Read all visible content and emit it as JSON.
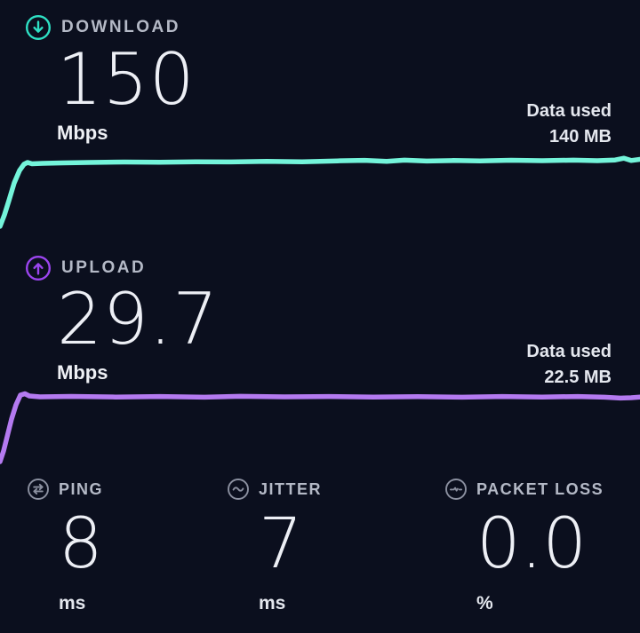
{
  "theme": {
    "background": "#0b0f1e",
    "download_accent": "#2ee0c4",
    "download_line_color": "#74f4da",
    "upload_accent": "#9b45ef",
    "upload_line_color": "#b47af0",
    "label_color": "#b4b9c6",
    "value_color": "#edeff5",
    "stat_icon_color": "#8b90a0"
  },
  "download": {
    "label": "DOWNLOAD",
    "value": "150",
    "unit": "Mbps",
    "data_used_label": "Data used",
    "data_used_value": "140 MB",
    "icon": "download-arrow-circle-icon"
  },
  "upload": {
    "label": "UPLOAD",
    "value": "29.7",
    "unit": "Mbps",
    "data_used_label": "Data used",
    "data_used_value": "22.5 MB",
    "icon": "upload-arrow-circle-icon"
  },
  "stats": [
    {
      "id": "ping",
      "label": "PING",
      "value": "8",
      "unit": "ms",
      "icon": "ping-exchange-icon"
    },
    {
      "id": "jitter",
      "label": "JITTER",
      "value": "7",
      "unit": "ms",
      "icon": "jitter-wave-icon"
    },
    {
      "id": "packet_loss",
      "label": "PACKET LOSS",
      "value": "0.0",
      "unit": "%",
      "icon": "packet-loss-pulse-icon"
    }
  ],
  "chart_data": [
    {
      "type": "line",
      "name": "download-speed-sparkline",
      "title": "Download speed over test duration (ramps up then steady at ~150 Mbps)",
      "color": "#74f4da",
      "stroke_width": 5.5,
      "axes": "none",
      "points": [
        [
          0,
          87
        ],
        [
          5,
          74
        ],
        [
          10,
          58
        ],
        [
          16,
          38
        ],
        [
          22,
          24
        ],
        [
          27,
          17
        ],
        [
          31,
          15
        ],
        [
          36,
          16.5
        ],
        [
          48,
          16
        ],
        [
          70,
          15.5
        ],
        [
          100,
          15
        ],
        [
          140,
          14.5
        ],
        [
          180,
          14.8
        ],
        [
          220,
          14.2
        ],
        [
          260,
          14.4
        ],
        [
          300,
          13.8
        ],
        [
          340,
          14.2
        ],
        [
          380,
          13.2
        ],
        [
          410,
          12.6
        ],
        [
          435,
          13.8
        ],
        [
          455,
          12.4
        ],
        [
          480,
          13.4
        ],
        [
          510,
          12.8
        ],
        [
          540,
          13.2
        ],
        [
          575,
          12.5
        ],
        [
          610,
          13.0
        ],
        [
          645,
          12.4
        ],
        [
          672,
          13.0
        ],
        [
          692,
          12.2
        ],
        [
          702,
          10.2
        ],
        [
          710,
          12.8
        ],
        [
          720,
          11.5
        ]
      ]
    },
    {
      "type": "line",
      "name": "upload-speed-sparkline",
      "title": "Upload speed over test duration (ramps up then steady at ~29.7 Mbps)",
      "color": "#b47af0",
      "stroke_width": 5.5,
      "axes": "none",
      "points": [
        [
          0,
          90
        ],
        [
          4,
          78
        ],
        [
          8,
          62
        ],
        [
          13,
          42
        ],
        [
          18,
          26
        ],
        [
          23,
          15
        ],
        [
          28,
          13.5
        ],
        [
          33,
          16
        ],
        [
          45,
          17
        ],
        [
          80,
          16.5
        ],
        [
          130,
          17.2
        ],
        [
          180,
          16.6
        ],
        [
          230,
          17.4
        ],
        [
          270,
          16.4
        ],
        [
          320,
          17.0
        ],
        [
          370,
          16.6
        ],
        [
          420,
          17.2
        ],
        [
          470,
          16.8
        ],
        [
          520,
          17.4
        ],
        [
          565,
          16.6
        ],
        [
          610,
          17.2
        ],
        [
          650,
          16.6
        ],
        [
          680,
          17.4
        ],
        [
          698,
          18.4
        ],
        [
          710,
          18.0
        ],
        [
          720,
          17.2
        ]
      ]
    }
  ]
}
